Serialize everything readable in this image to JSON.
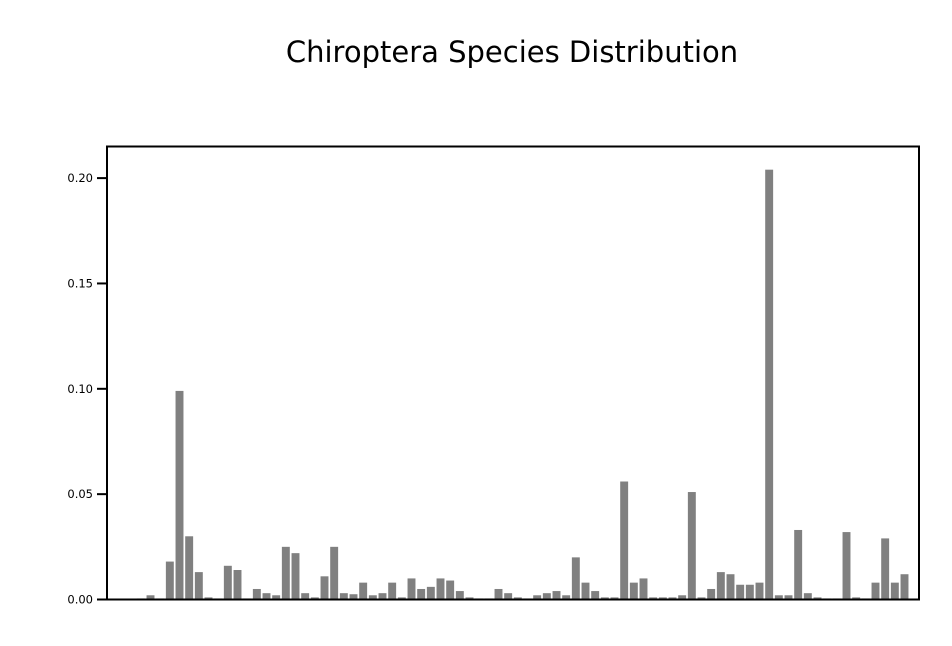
{
  "chart_data": {
    "type": "bar",
    "title": "Chiroptera Species Distribution",
    "xlabel": "",
    "ylabel": "",
    "ylim": [
      0,
      0.215
    ],
    "yticks": [
      0.0,
      0.05,
      0.1,
      0.15,
      0.2
    ],
    "ytick_labels": [
      "0.00",
      "0.05",
      "0.10",
      "0.15",
      "0.20"
    ],
    "x_tick_labels_visible": false,
    "grid": false,
    "bar_color": "#808080",
    "values": [
      0,
      0,
      0,
      0.0005,
      0.002,
      0.0005,
      0.018,
      0.099,
      0.03,
      0.013,
      0.001,
      0.0005,
      0.016,
      0.014,
      0.0005,
      0.005,
      0.003,
      0.002,
      0.025,
      0.022,
      0.003,
      0.001,
      0.011,
      0.025,
      0.003,
      0.0025,
      0.008,
      0.002,
      0.003,
      0.008,
      0.001,
      0.01,
      0.005,
      0.006,
      0.01,
      0.009,
      0.004,
      0.001,
      0.0005,
      0.0005,
      0.005,
      0.003,
      0.001,
      0.0005,
      0.002,
      0.003,
      0.004,
      0.002,
      0.02,
      0.008,
      0.004,
      0.001,
      0.001,
      0.056,
      0.008,
      0.01,
      0.001,
      0.001,
      0.001,
      0.002,
      0.051,
      0.001,
      0.005,
      0.013,
      0.012,
      0.007,
      0.007,
      0.008,
      0.204,
      0.002,
      0.002,
      0.033,
      0.003,
      0.001,
      0.0005,
      0.0005,
      0.032,
      0.001,
      0.0005,
      0.008,
      0.029,
      0.008,
      0.012,
      0
    ]
  }
}
